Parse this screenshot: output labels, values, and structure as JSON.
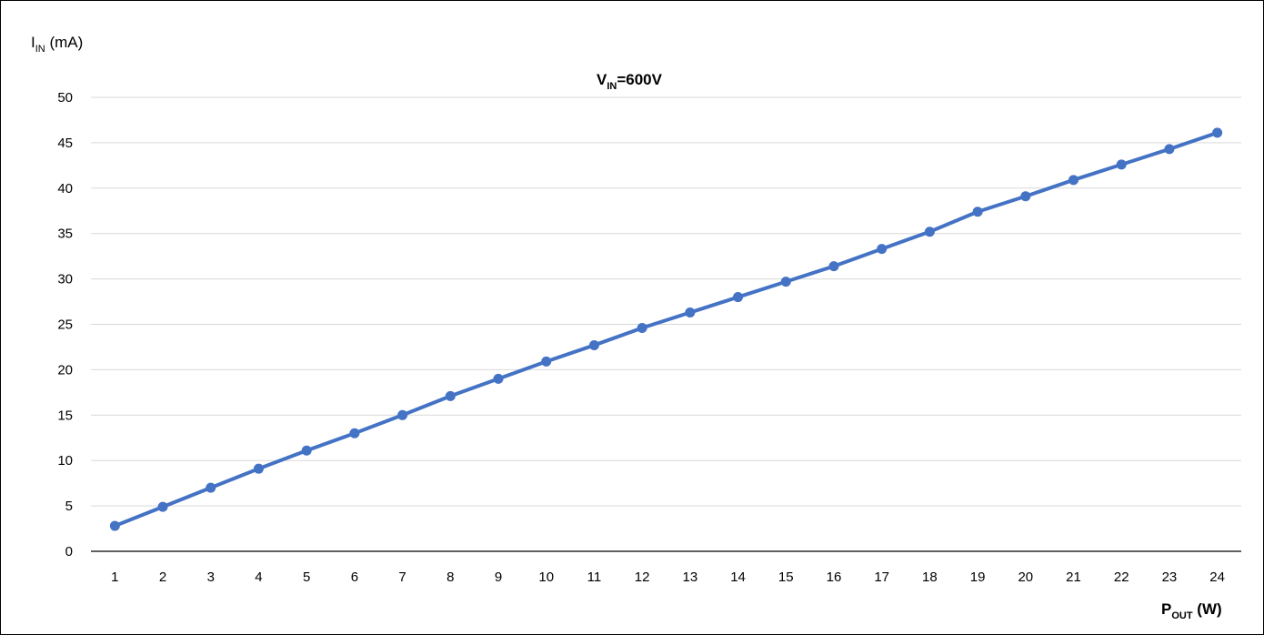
{
  "chart_data": {
    "type": "line",
    "title": {
      "main": "V",
      "sub": "IN",
      "tail": "=600V"
    },
    "ylabel": {
      "main": "I",
      "sub": "IN",
      "tail": " (mA)"
    },
    "xlabel": {
      "main": "P",
      "sub": "OUT",
      "tail": " (W)"
    },
    "x": [
      1,
      2,
      3,
      4,
      5,
      6,
      7,
      8,
      9,
      10,
      11,
      12,
      13,
      14,
      15,
      16,
      17,
      18,
      19,
      20,
      21,
      22,
      23,
      24
    ],
    "series": [
      {
        "values": [
          2.8,
          4.9,
          7.0,
          9.1,
          11.1,
          13.0,
          15.0,
          17.1,
          19.0,
          20.9,
          22.7,
          24.6,
          26.3,
          28.0,
          29.7,
          31.4,
          33.3,
          35.2,
          37.4,
          39.1,
          40.9,
          42.6,
          44.3,
          46.1
        ],
        "color": "#4472c4"
      }
    ],
    "ylim": [
      0,
      50
    ],
    "yticks": [
      "0",
      "5",
      "10",
      "15",
      "20",
      "25",
      "30",
      "35",
      "40",
      "45",
      "50"
    ],
    "xticks": [
      "1",
      "2",
      "3",
      "4",
      "5",
      "6",
      "7",
      "8",
      "9",
      "10",
      "11",
      "12",
      "13",
      "14",
      "15",
      "16",
      "17",
      "18",
      "19",
      "20",
      "21",
      "22",
      "23",
      "24"
    ],
    "grid": "horizontal",
    "legend": "none"
  }
}
